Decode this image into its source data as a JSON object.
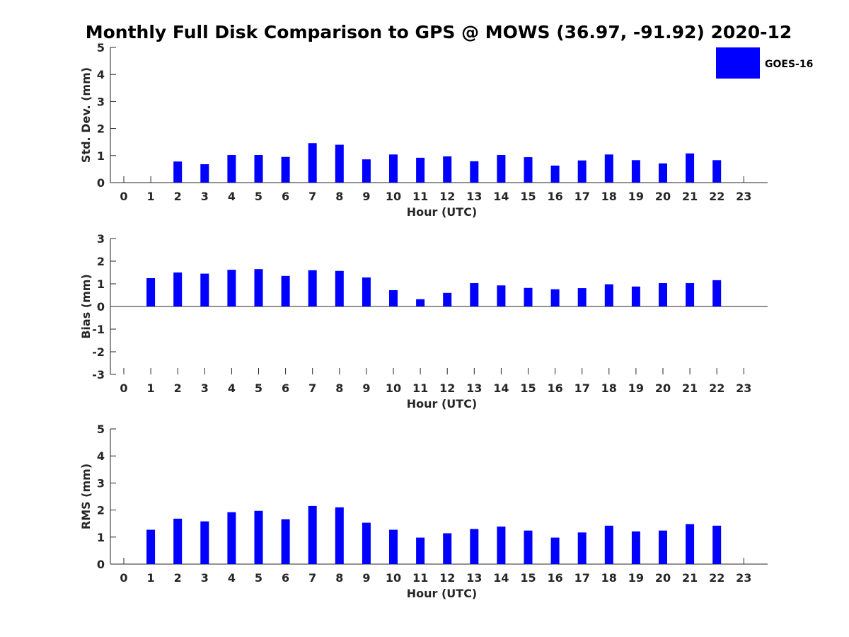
{
  "figure": {
    "title": "Monthly Full Disk Comparison to GPS @ MOWS (36.97, -91.92) 2020-12",
    "legend": {
      "label": "GOES-16",
      "color": "#0000ff"
    }
  },
  "chart_data": [
    {
      "type": "bar",
      "name": "std-dev",
      "categories": [
        "0",
        "1",
        "2",
        "3",
        "4",
        "5",
        "6",
        "7",
        "8",
        "9",
        "10",
        "11",
        "12",
        "13",
        "14",
        "15",
        "16",
        "17",
        "18",
        "19",
        "20",
        "21",
        "22",
        "23"
      ],
      "series": [
        {
          "name": "GOES-16",
          "color": "#0000ff",
          "values": [
            null,
            null,
            0.78,
            0.68,
            1.02,
            1.02,
            0.95,
            1.46,
            1.4,
            0.86,
            1.04,
            0.92,
            0.97,
            0.79,
            1.02,
            0.94,
            0.63,
            0.82,
            1.04,
            0.83,
            0.71,
            1.08,
            0.83,
            null
          ]
        }
      ],
      "xlabel": "Hour (UTC)",
      "ylabel": "Std. Dev. (mm)",
      "ylim": [
        0,
        5
      ],
      "yticks": [
        "0",
        "1",
        "2",
        "3",
        "4",
        "5"
      ],
      "grid": false,
      "legend": "top-right"
    },
    {
      "type": "bar",
      "name": "bias",
      "categories": [
        "0",
        "1",
        "2",
        "3",
        "4",
        "5",
        "6",
        "7",
        "8",
        "9",
        "10",
        "11",
        "12",
        "13",
        "14",
        "15",
        "16",
        "17",
        "18",
        "19",
        "20",
        "21",
        "22",
        "23"
      ],
      "series": [
        {
          "name": "GOES-16",
          "color": "#0000ff",
          "values": [
            null,
            1.25,
            1.5,
            1.45,
            1.62,
            1.65,
            1.35,
            1.6,
            1.57,
            1.28,
            0.72,
            0.32,
            0.6,
            1.03,
            0.93,
            0.82,
            0.76,
            0.81,
            0.98,
            0.88,
            1.03,
            1.03,
            1.16,
            null
          ]
        }
      ],
      "xlabel": "Hour (UTC)",
      "ylabel": "Bias (mm)",
      "ylim": [
        -3,
        3
      ],
      "yticks": [
        "-3",
        "-2",
        "-1",
        "0",
        "1",
        "2",
        "3"
      ],
      "grid": false
    },
    {
      "type": "bar",
      "name": "rms",
      "categories": [
        "0",
        "1",
        "2",
        "3",
        "4",
        "5",
        "6",
        "7",
        "8",
        "9",
        "10",
        "11",
        "12",
        "13",
        "14",
        "15",
        "16",
        "17",
        "18",
        "19",
        "20",
        "21",
        "22",
        "23"
      ],
      "series": [
        {
          "name": "GOES-16",
          "color": "#0000ff",
          "values": [
            null,
            1.27,
            1.68,
            1.58,
            1.92,
            1.97,
            1.66,
            2.15,
            2.1,
            1.53,
            1.27,
            0.98,
            1.14,
            1.3,
            1.39,
            1.24,
            0.98,
            1.17,
            1.42,
            1.21,
            1.24,
            1.48,
            1.42,
            null
          ]
        }
      ],
      "xlabel": "Hour (UTC)",
      "ylabel": "RMS (mm)",
      "ylim": [
        0,
        5
      ],
      "yticks": [
        "0",
        "1",
        "2",
        "3",
        "4",
        "5"
      ],
      "grid": false
    }
  ]
}
